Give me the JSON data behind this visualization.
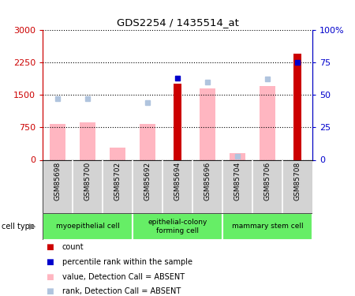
{
  "title": "GDS2254 / 1435514_at",
  "samples": [
    "GSM85698",
    "GSM85700",
    "GSM85702",
    "GSM85692",
    "GSM85694",
    "GSM85696",
    "GSM85704",
    "GSM85706",
    "GSM85708"
  ],
  "count_values": [
    null,
    null,
    null,
    null,
    1750,
    null,
    null,
    null,
    2450
  ],
  "rank_pct_values": [
    null,
    null,
    null,
    null,
    63,
    null,
    null,
    null,
    75
  ],
  "absent_value_bars": [
    830,
    870,
    280,
    830,
    null,
    1650,
    150,
    1700,
    null
  ],
  "absent_rank_pct": [
    47,
    47,
    null,
    44,
    null,
    60,
    3,
    62,
    null
  ],
  "ylim_left": [
    0,
    3000
  ],
  "ylim_right": [
    0,
    100
  ],
  "yticks_left": [
    0,
    750,
    1500,
    2250,
    3000
  ],
  "ytick_labels_left": [
    "0",
    "750",
    "1500",
    "2250",
    "3000"
  ],
  "yticks_right": [
    0,
    25,
    50,
    75,
    100
  ],
  "ytick_labels_right": [
    "0",
    "25",
    "50",
    "75",
    "100%"
  ],
  "color_count": "#cc0000",
  "color_rank": "#0000cc",
  "color_absent_value": "#ffb6c1",
  "color_absent_rank": "#b0c4de",
  "cell_type_groups": [
    {
      "label": "myoepithelial cell",
      "start": 0,
      "end": 2,
      "color": "#66ee66"
    },
    {
      "label": "epithelial-colony\nforming cell",
      "start": 3,
      "end": 5,
      "color": "#66ee66"
    },
    {
      "label": "mammary stem cell",
      "start": 6,
      "end": 8,
      "color": "#66ee66"
    }
  ],
  "legend_items": [
    {
      "color": "#cc0000",
      "label": "count"
    },
    {
      "color": "#0000cc",
      "label": "percentile rank within the sample"
    },
    {
      "color": "#ffb6c1",
      "label": "value, Detection Call = ABSENT"
    },
    {
      "color": "#b0c4de",
      "label": "rank, Detection Call = ABSENT"
    }
  ]
}
